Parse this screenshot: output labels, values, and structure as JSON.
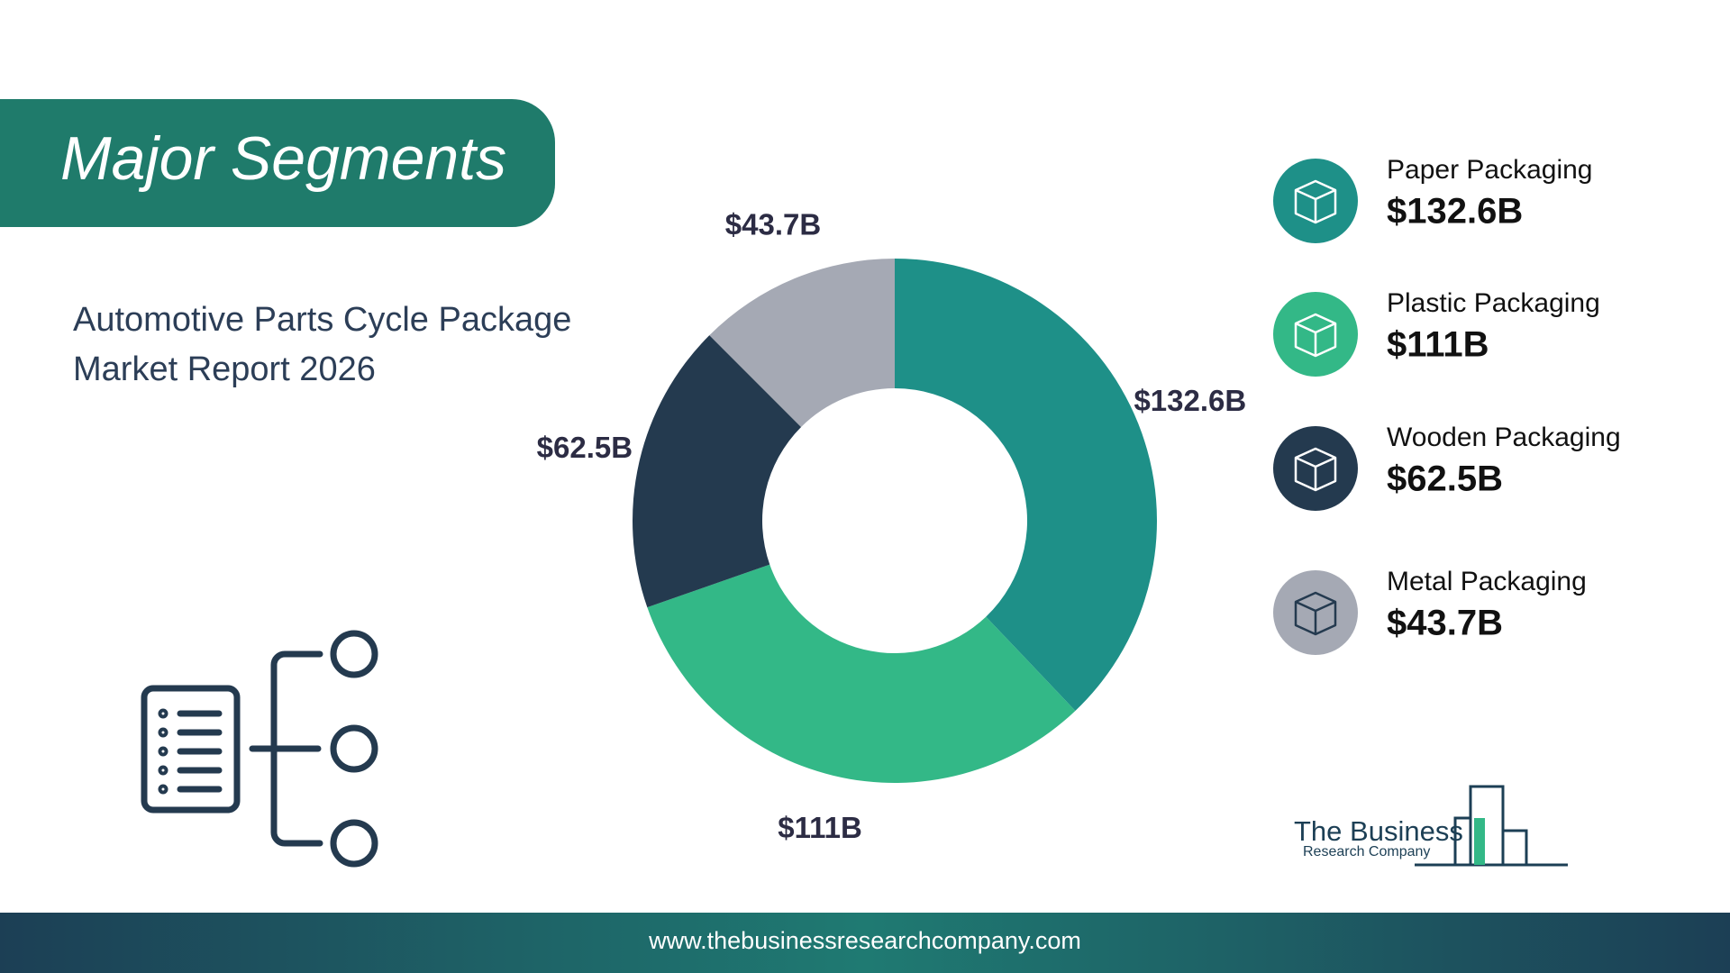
{
  "chart_data": {
    "type": "pie",
    "title": "Major Segments",
    "subtitle": [
      "Automotive Parts Cycle Package",
      "Market Report 2026"
    ],
    "categories": [
      "Paper Packaging",
      "Plastic Packaging",
      "Wooden Packaging",
      "Metal Packaging"
    ],
    "values": [
      132.6,
      111,
      62.5,
      43.7
    ],
    "value_labels": [
      "$132.6B",
      "$111B",
      "$62.5B",
      "$43.7B"
    ],
    "colors": [
      "#1e9088",
      "#33b887",
      "#243a4f",
      "#a5a9b4"
    ],
    "donut": true,
    "legend": "right"
  },
  "footer": {
    "url": "www.thebusinessresearchcompany.com"
  },
  "logo": {
    "line1": "The Business",
    "line2": "Research Company"
  }
}
